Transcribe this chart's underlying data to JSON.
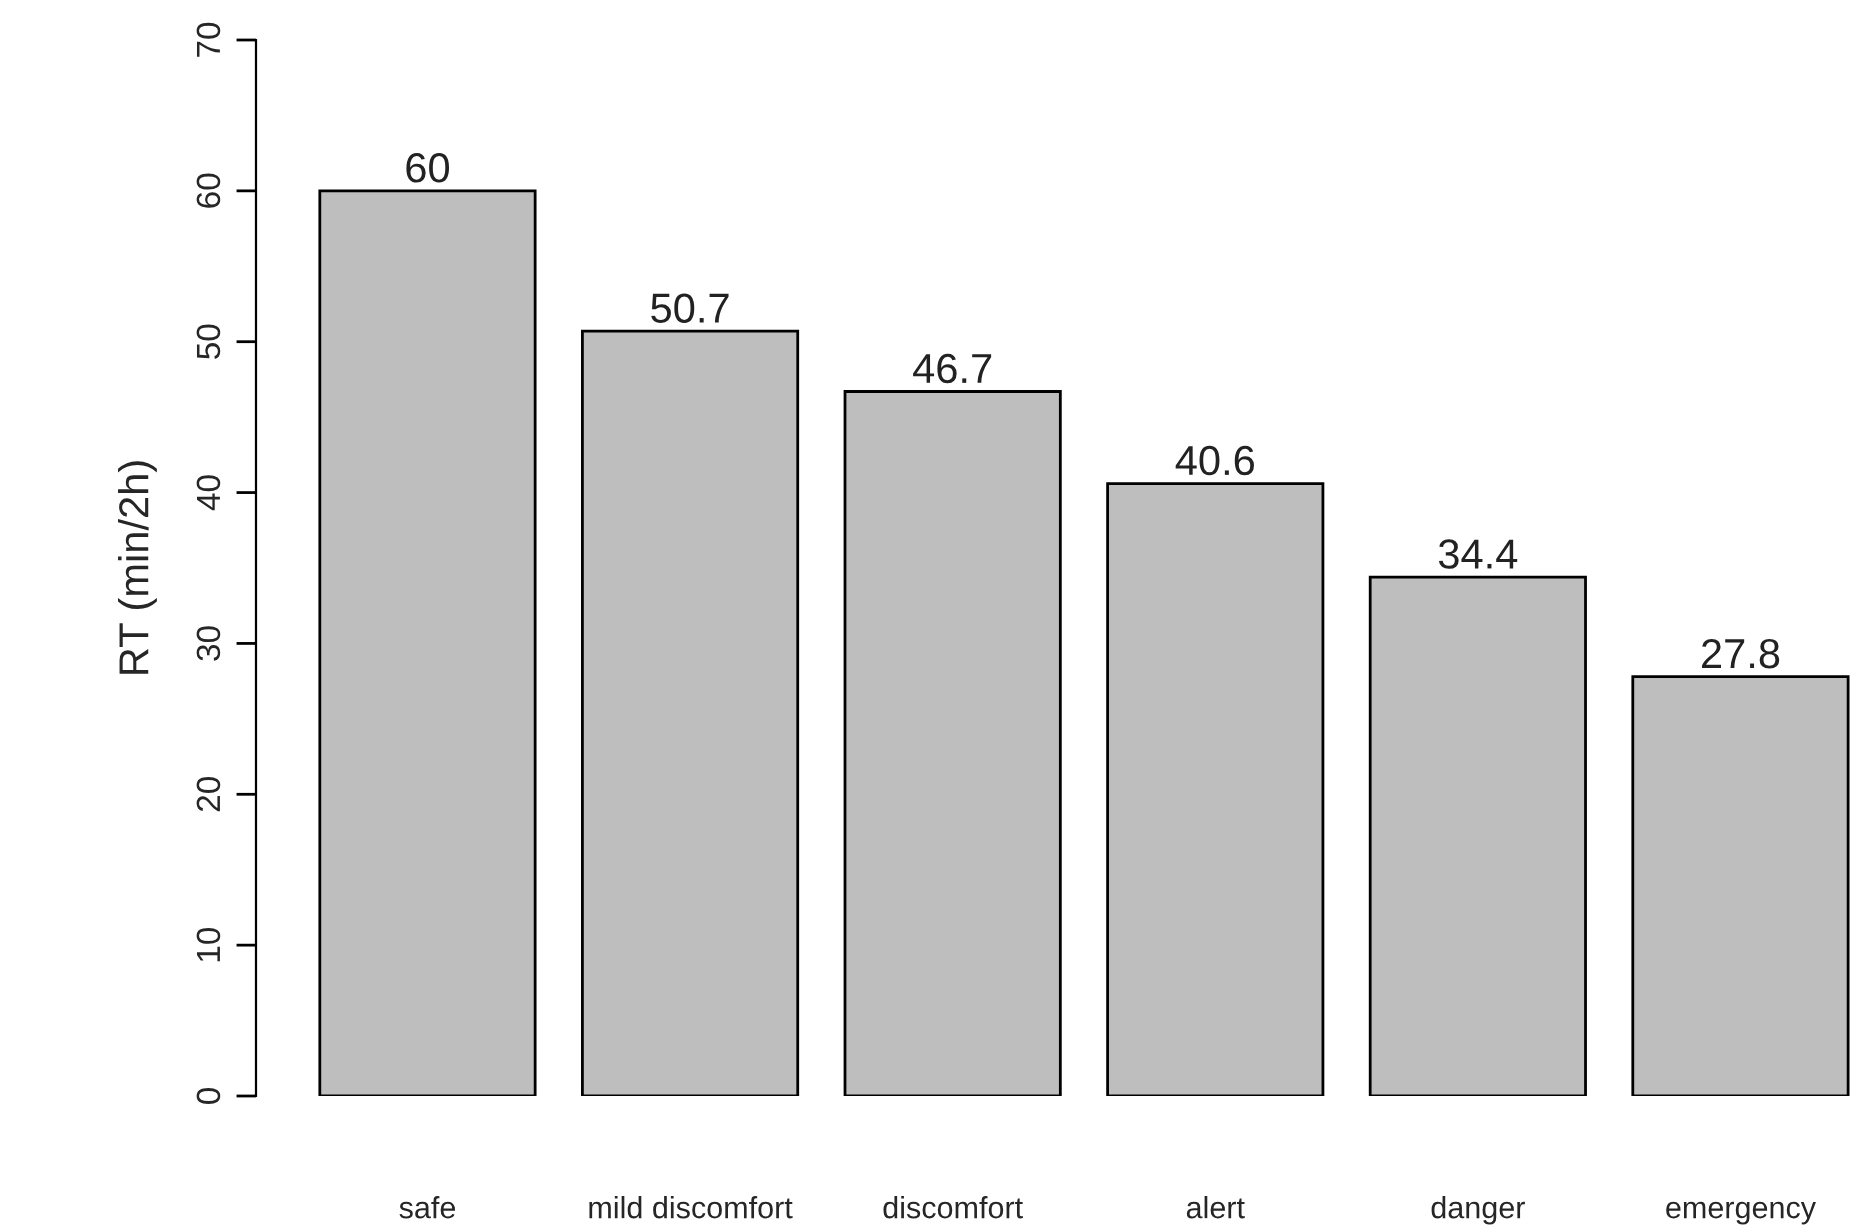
{
  "chart_data": {
    "type": "bar",
    "ylabel": "RT (min/2h)",
    "categories": [
      "safe",
      "mild discomfort",
      "discomfort",
      "alert",
      "danger",
      "emergency"
    ],
    "values": [
      60,
      50.7,
      46.7,
      40.6,
      34.4,
      27.8
    ],
    "color": "#bebebe",
    "ylim": [
      0,
      70
    ],
    "yticks": [
      0,
      10,
      20,
      30,
      40,
      50,
      60,
      70
    ],
    "data_labels": true,
    "grid": false
  }
}
